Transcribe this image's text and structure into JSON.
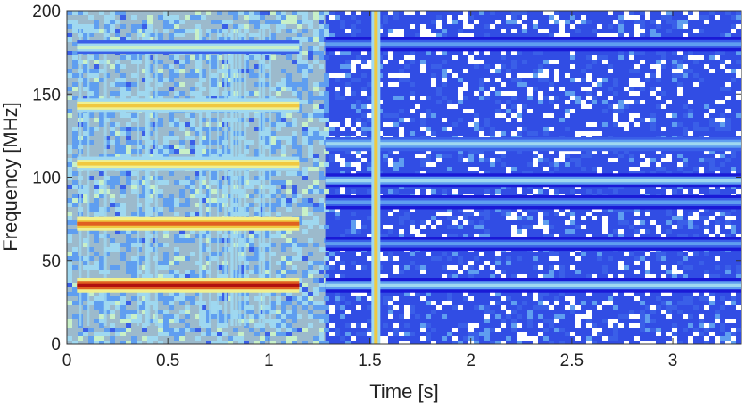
{
  "chart_data": {
    "type": "heatmap",
    "title": "",
    "xlabel": "Time [s]",
    "ylabel": "Frequency [MHz]",
    "xlim": [
      0,
      3.34
    ],
    "ylim": [
      0,
      200
    ],
    "x_ticks": [
      0,
      0.5,
      1,
      1.5,
      2,
      2.5,
      3
    ],
    "x_tick_labels": [
      "0",
      "0.5",
      "1",
      "1.5",
      "2",
      "2.5",
      "3"
    ],
    "y_ticks": [
      0,
      50,
      100,
      150,
      200
    ],
    "y_tick_labels": [
      "0",
      "50",
      "100",
      "150",
      "200"
    ],
    "grid": false,
    "colormap": [
      "#1a1ad6",
      "#3a5fe8",
      "#5f9ef0",
      "#9fd8f0",
      "#c8f0c8",
      "#f0f090",
      "#f0c840",
      "#e06020",
      "#b01010"
    ],
    "background_color": "#1a1ad6",
    "regions": [
      {
        "t_start": 0,
        "t_end": 1.28,
        "level": 0.45
      },
      {
        "t_start": 1.28,
        "t_end": 3.34,
        "level": 0.08
      }
    ],
    "bands": [
      {
        "freq": 35,
        "t_start": 0.05,
        "t_end": 1.15,
        "level": 0.98
      },
      {
        "freq": 72,
        "t_start": 0.05,
        "t_end": 1.15,
        "level": 0.92
      },
      {
        "freq": 108,
        "t_start": 0.05,
        "t_end": 1.15,
        "level": 0.7
      },
      {
        "freq": 143,
        "t_start": 0.05,
        "t_end": 1.15,
        "level": 0.72
      },
      {
        "freq": 178,
        "t_start": 0.05,
        "t_end": 1.15,
        "level": 0.45
      },
      {
        "freq": 120,
        "t_start": 1.28,
        "t_end": 3.34,
        "level": 0.4
      },
      {
        "freq": 98,
        "t_start": 1.28,
        "t_end": 3.34,
        "level": 0.32
      },
      {
        "freq": 60,
        "t_start": 1.28,
        "t_end": 3.34,
        "level": 0.3
      },
      {
        "freq": 35,
        "t_start": 1.28,
        "t_end": 3.34,
        "level": 0.35
      },
      {
        "freq": 180,
        "t_start": 1.28,
        "t_end": 3.34,
        "level": 0.3
      },
      {
        "freq": 85,
        "t_start": 1.28,
        "t_end": 3.34,
        "level": 0.22
      }
    ],
    "bursts": [
      {
        "time": 1.53,
        "f_start": 0,
        "f_end": 200,
        "level": 0.7
      }
    ]
  }
}
